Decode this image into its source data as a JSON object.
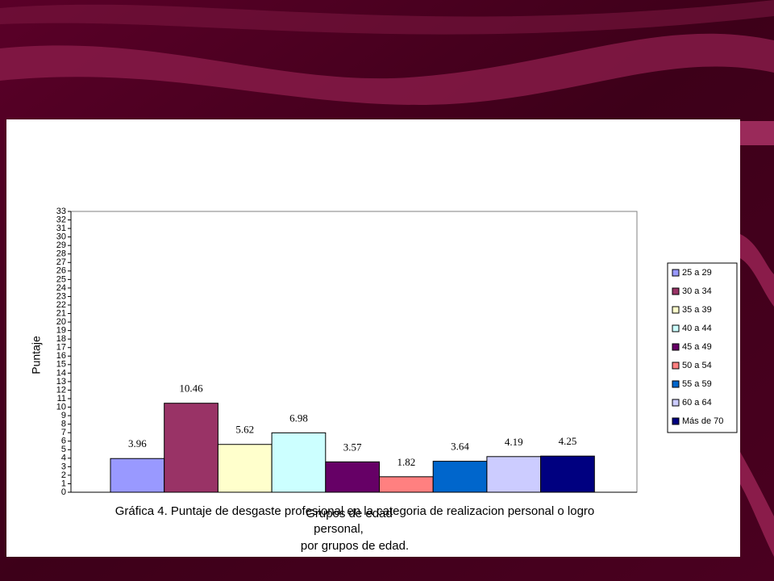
{
  "chart_data": {
    "type": "bar",
    "title_lines": [
      "Gráfica 4. Puntaje de desgaste profesional en la categoria de  realizacion personal o logro",
      "personal,",
      "por grupos de edad."
    ],
    "x_label": "Grupos de edad",
    "y_label": "Puntaje",
    "ylim": [
      0,
      33
    ],
    "yticks": [
      0,
      1,
      2,
      3,
      4,
      5,
      6,
      7,
      8,
      9,
      10,
      11,
      12,
      13,
      14,
      15,
      16,
      17,
      18,
      19,
      20,
      21,
      22,
      23,
      24,
      25,
      26,
      27,
      28,
      29,
      30,
      31,
      32,
      33
    ],
    "series": [
      {
        "name": "25 a 29",
        "color": "#9999ff",
        "values": [
          3.96
        ]
      },
      {
        "name": "30 a 34",
        "color": "#993366",
        "values": [
          10.46
        ]
      },
      {
        "name": "35 a 39",
        "color": "#ffffcc",
        "values": [
          5.62
        ]
      },
      {
        "name": "40 a 44",
        "color": "#ccffff",
        "values": [
          6.98
        ]
      },
      {
        "name": "45 a 49",
        "color": "#660066",
        "values": [
          3.57
        ]
      },
      {
        "name": "50 a 54",
        "color": "#ff8080",
        "values": [
          1.82
        ]
      },
      {
        "name": "55 a 59",
        "color": "#0066cc",
        "values": [
          3.64
        ]
      },
      {
        "name": "60 a 64",
        "color": "#ccccff",
        "values": [
          4.19
        ]
      },
      {
        "name": "Más de 70",
        "color": "#000080",
        "values": [
          4.25
        ]
      }
    ]
  }
}
